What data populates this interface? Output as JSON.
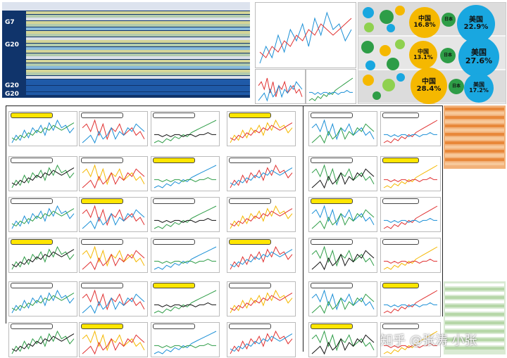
{
  "region_labels": {
    "g7": "G7",
    "g20": "G20",
    "g20b": "G20",
    "g20c": "G20"
  },
  "bubbles": {
    "big": [
      {
        "country": "美国",
        "share": "22.9%",
        "color": "#19a7e0"
      },
      {
        "country": "中国",
        "share": "16.8%",
        "color": "#f5b800"
      },
      {
        "country": "美国",
        "share": "27.6%",
        "color": "#19a7e0"
      },
      {
        "country": "中国",
        "share": "13.1%",
        "color": "#f5b800"
      },
      {
        "country": "中国",
        "share": "28.4%",
        "color": "#f5b800"
      },
      {
        "country": "美国",
        "share": "17.2%",
        "color": "#19a7e0"
      }
    ],
    "small": [
      {
        "country": "日本",
        "share": "7.1%",
        "color": "#2e9d47"
      },
      {
        "country": "日本",
        "share": "5.9%",
        "color": "#2e9d47"
      },
      {
        "country": "日本",
        "share": "7.3%",
        "color": "#2e9d47"
      }
    ]
  },
  "watermark": "知乎 @张涛 小张",
  "colors": {
    "navy": "#10346b",
    "yellow": "#ffe600",
    "green": "#2e9d47",
    "blue": "#19a7e0",
    "orange": "#f5b800",
    "red": "#e03030"
  },
  "chart_data": [
    {
      "type": "table",
      "title": "",
      "grid": true
    },
    {
      "type": "line",
      "title": "",
      "series": [
        {
          "values": [
            3,
            6,
            4,
            8,
            5,
            9,
            7,
            10,
            6,
            11,
            8,
            12,
            9,
            10,
            7,
            9
          ]
        },
        {
          "values": [
            5,
            4,
            6,
            5,
            7,
            6,
            8,
            7,
            9,
            8,
            10,
            9,
            8,
            9,
            10,
            11
          ]
        }
      ]
    },
    {
      "type": "line",
      "title": "",
      "series": [
        {
          "values": [
            8,
            9,
            7,
            10,
            6,
            9,
            5,
            8,
            7,
            9,
            6,
            7,
            8,
            6,
            7,
            5
          ]
        },
        {
          "values": [
            4,
            5,
            6,
            4,
            7,
            5,
            6,
            8,
            5,
            7,
            6,
            8,
            7,
            9,
            8,
            7
          ]
        }
      ]
    },
    {
      "type": "line",
      "title": "",
      "series": [
        {
          "values": [
            2,
            3,
            2,
            4,
            3,
            5,
            4,
            6,
            5,
            7,
            8,
            9,
            10,
            11,
            12,
            13
          ]
        },
        {
          "values": [
            6,
            6,
            5,
            6,
            5,
            6,
            6,
            5,
            6,
            6,
            5,
            6,
            6,
            7,
            6,
            6
          ]
        }
      ]
    },
    {
      "type": "line",
      "title": "",
      "series": [
        {
          "values": [
            9,
            6,
            10,
            4,
            11,
            5,
            8,
            3,
            9,
            6,
            10,
            5,
            9,
            7,
            8,
            6
          ]
        },
        {
          "values": [
            7,
            8,
            6,
            9,
            7,
            8,
            6,
            9,
            7,
            8,
            6,
            9,
            7,
            8,
            6,
            7
          ]
        }
      ]
    }
  ]
}
